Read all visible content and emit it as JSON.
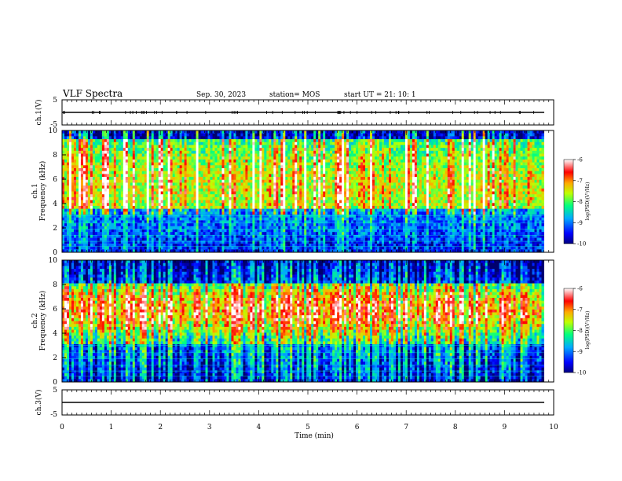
{
  "header": {
    "title": "VLF Spectra",
    "date": "Sep. 30, 2023",
    "station": "station= MOS",
    "start_ut": "start  UT  =   21: 10: 1"
  },
  "chart_data": [
    {
      "type": "line",
      "panel": "ch1-voltage",
      "ylabel": "ch.1(V)",
      "ylim": [
        -5,
        5
      ],
      "yticks": [
        "5",
        "-5"
      ],
      "x": [
        0,
        10
      ],
      "values": [
        0,
        0
      ],
      "xlim": [
        0,
        10
      ]
    },
    {
      "type": "heatmap",
      "panel": "ch1-spectrogram",
      "ylabel": "ch.1\nFrequency (kHz)",
      "ylabel_lines": [
        "ch.1",
        "Frequency (kHz)"
      ],
      "ylim": [
        0,
        10
      ],
      "yticks": [
        "0",
        "2",
        "4",
        "6",
        "8",
        "10"
      ],
      "xlim": [
        0,
        10
      ],
      "data_end_min": 9.8,
      "colorbar": {
        "label": "log(PSD)(V²/Hz)",
        "range": [
          -10,
          -6
        ],
        "ticks": [
          "-6",
          "-7",
          "-8",
          "-9",
          "-10"
        ]
      }
    },
    {
      "type": "heatmap",
      "panel": "ch2-spectrogram",
      "ylabel": "ch.2\nFrequency (kHz)",
      "ylabel_lines": [
        "ch.2",
        "Frequency (kHz)"
      ],
      "ylim": [
        0,
        10
      ],
      "yticks": [
        "0",
        "2",
        "4",
        "6",
        "8",
        "10"
      ],
      "xlim": [
        0,
        10
      ],
      "data_end_min": 9.8,
      "colorbar": {
        "label": "log(PSD)(V²/Hz)",
        "range": [
          -10,
          -6
        ],
        "ticks": [
          "-6",
          "-7",
          "-8",
          "-9",
          "-10"
        ]
      }
    },
    {
      "type": "line",
      "panel": "ch3-voltage",
      "ylabel": "ch.3(V)",
      "ylim": [
        -5,
        5
      ],
      "yticks": [
        "5",
        "-5"
      ],
      "x": [
        0,
        9.8
      ],
      "values": [
        0,
        0
      ],
      "xlim": [
        0,
        10
      ],
      "xlabel": "Time  (min)",
      "xticks": [
        "0",
        "1",
        "2",
        "3",
        "4",
        "5",
        "6",
        "7",
        "8",
        "9",
        "10"
      ]
    }
  ],
  "colors": {
    "colormap": [
      "#000080",
      "#0000ff",
      "#00a0ff",
      "#00ffff",
      "#00ff60",
      "#a0ff00",
      "#ffff00",
      "#ff8000",
      "#ff0000",
      "#ffffff"
    ]
  }
}
